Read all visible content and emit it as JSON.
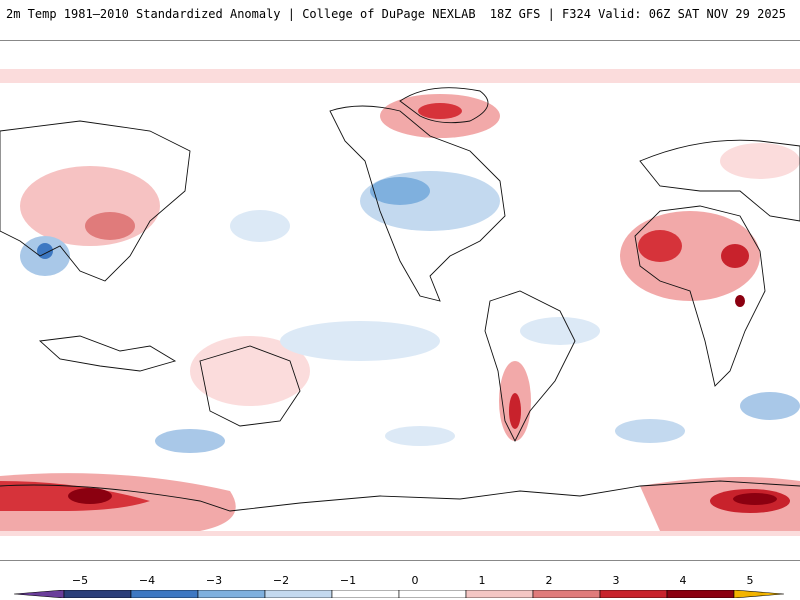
{
  "header": {
    "title": "2m Temp 1981–2010 Standardized Anomaly | College of DuPage NEXLAB",
    "run_info": "18Z GFS | F324 Valid: 06Z SAT NOV 29 2025"
  },
  "legend": {
    "ticks": [
      "−5",
      "−4",
      "−3",
      "−2",
      "−1",
      "0",
      "1",
      "2",
      "3",
      "4",
      "5"
    ],
    "colors": [
      "#6a3d9a",
      "#2b3f7a",
      "#3d78c2",
      "#7fb0de",
      "#c3d9ef",
      "#ffffff",
      "#ffffff",
      "#f4c6c4",
      "#e07b7b",
      "#c8222c",
      "#8b0010",
      "#f2b400"
    ]
  },
  "colors": {
    "land_outline": "#111111",
    "warm_light": "#fbdcdc",
    "warm_mid": "#f2a9a9",
    "warm_strong": "#d6333a",
    "warm_extreme": "#8b0010",
    "cool_light": "#dce9f6",
    "cool_mid": "#a9c8e8",
    "cool_strong": "#4f8fd0"
  }
}
